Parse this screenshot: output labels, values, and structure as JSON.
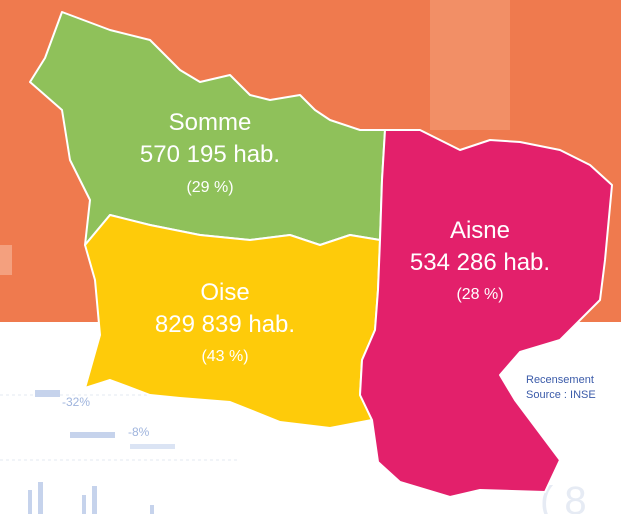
{
  "map": {
    "regions": [
      {
        "name": "Somme",
        "population": "570 195 hab.",
        "share": "(29 %)"
      },
      {
        "name": "Oise",
        "population": "829 839 hab.",
        "share": "(43 %)"
      },
      {
        "name": "Aisne",
        "population": "534 286 hab.",
        "share": "(28 %)"
      }
    ]
  },
  "background": {
    "labels": [
      "-32%",
      "-8%"
    ],
    "note": [
      "Recensement",
      "Source : INSE"
    ]
  }
}
